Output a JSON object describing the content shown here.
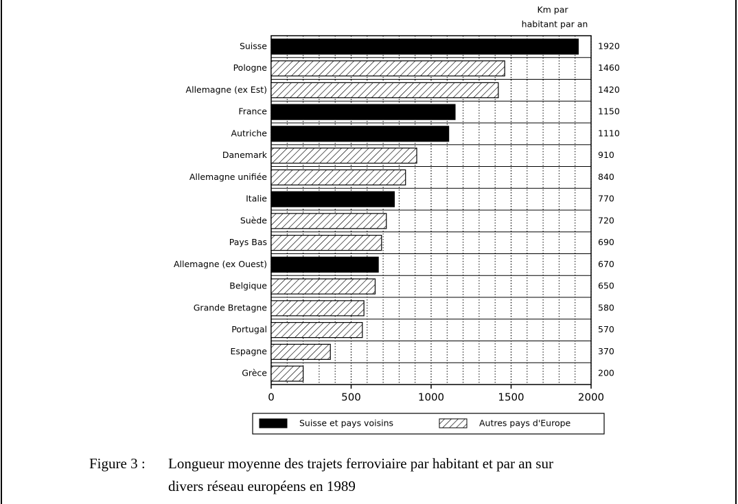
{
  "chart_data": {
    "type": "hbar",
    "annotations": [
      "Km par",
      "habitant par an"
    ],
    "categories": [
      "Suisse",
      "Pologne",
      "Allemagne (ex Est)",
      "France",
      "Autriche",
      "Danemark",
      "Allemagne unifiée",
      "Italie",
      "Suède",
      "Pays Bas",
      "Allemagne (ex Ouest)",
      "Belgique",
      "Grande Bretagne",
      "Portugal",
      "Espagne",
      "Grèce"
    ],
    "series": [
      {
        "name": "Suisse et pays voisins",
        "color": "#000000",
        "values": [
          1920,
          null,
          null,
          1150,
          1110,
          null,
          null,
          770,
          null,
          null,
          670,
          null,
          null,
          null,
          null,
          null
        ]
      },
      {
        "name": "Autres pays d'Europe",
        "color": "hatched",
        "values": [
          null,
          1460,
          1420,
          null,
          null,
          910,
          840,
          null,
          720,
          690,
          null,
          650,
          580,
          570,
          370,
          200
        ]
      }
    ],
    "xlim": [
      0,
      2000
    ],
    "xticks": [
      0,
      500,
      1000,
      1500,
      2000
    ],
    "minor_xticks": [
      100,
      200,
      300,
      400,
      600,
      700,
      800,
      900,
      1100,
      1200,
      1300,
      1400,
      1600,
      1700,
      1800,
      1900
    ],
    "grid": true,
    "legend": "bottom"
  },
  "caption": {
    "label": "Figure 3 :",
    "lines": [
      "Longueur moyenne des trajets ferroviaire par habitant et par an sur",
      "divers réseau européens en 1989"
    ]
  }
}
